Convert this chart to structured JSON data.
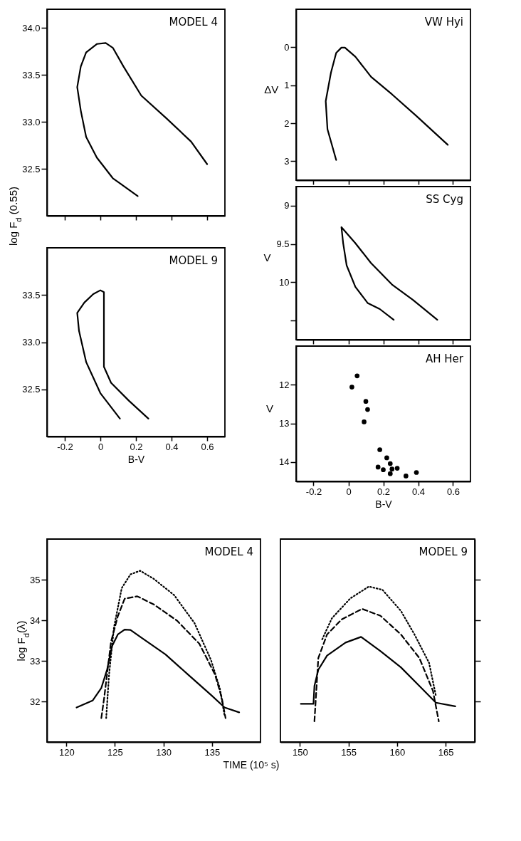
{
  "chart_data": [
    {
      "type": "line",
      "title": "MODEL 4",
      "ylabel": "log F$_{d}$ (0.55)",
      "xlim": [
        -0.3,
        0.7
      ],
      "ylim": [
        32.0,
        34.2
      ],
      "xticks": [
        -0.2,
        0,
        0.2,
        0.4,
        0.6
      ],
      "yticks": [
        32.5,
        {
          "value": 33,
          "label": "33.0"
        },
        33.5,
        {
          "value": 34,
          "label": "34.0"
        }
      ],
      "tick_labels": "y",
      "series": [
        {
          "color": "#000000",
          "x": [
            0.21,
            0.07,
            -0.02,
            -0.08,
            -0.11,
            -0.13,
            -0.11,
            -0.08,
            -0.02,
            0.03,
            0.07,
            0.13,
            0.23,
            0.37,
            0.51,
            0.6
          ],
          "values": [
            32.21,
            32.4,
            32.62,
            32.84,
            33.12,
            33.37,
            33.59,
            33.74,
            33.83,
            33.84,
            33.79,
            33.59,
            33.28,
            33.04,
            32.79,
            32.55
          ]
        }
      ]
    },
    {
      "type": "line",
      "title": "MODEL 9",
      "xlabel": "B-V",
      "xlim": [
        -0.3,
        0.7
      ],
      "ylim": [
        32.0,
        34.0
      ],
      "xticks": [
        -0.2,
        0,
        0.2,
        0.4,
        0.6
      ],
      "yticks": [
        32.5,
        {
          "value": 33,
          "label": "33.0"
        },
        33.5
      ],
      "series": [
        {
          "color": "#000000",
          "x": [
            0.11,
            0.0,
            -0.08,
            -0.12,
            -0.13,
            -0.09,
            -0.04,
            0.0,
            0.02,
            0.02,
            0.02,
            0.06,
            0.16,
            0.27
          ],
          "values": [
            32.19,
            32.46,
            32.79,
            33.12,
            33.31,
            33.42,
            33.51,
            33.55,
            33.53,
            33.12,
            32.74,
            32.57,
            32.38,
            32.19
          ]
        }
      ]
    },
    {
      "type": "line",
      "title": "VW Hyi",
      "ylabel": "ΔV",
      "xlim": [
        -0.3,
        0.7
      ],
      "ylim": [
        3.5,
        -1.0
      ],
      "xticks": [
        -0.2,
        0,
        0.2,
        0.4,
        0.6
      ],
      "yticks": [
        0,
        1,
        2,
        3
      ],
      "tick_labels": "y",
      "series": [
        {
          "color": "#000000",
          "x": [
            -0.07,
            -0.12,
            -0.13,
            -0.1,
            -0.07,
            -0.04,
            -0.02,
            0.04,
            0.13,
            0.25,
            0.39,
            0.57
          ],
          "values": [
            2.97,
            2.16,
            1.42,
            0.67,
            0.15,
            0.01,
            0.01,
            0.25,
            0.78,
            1.24,
            1.81,
            2.57
          ]
        }
      ]
    },
    {
      "type": "line",
      "title": "SS Cyg",
      "ylabel": "V",
      "xlim": [
        -0.3,
        0.7
      ],
      "ylim": [
        10.75,
        8.75
      ],
      "xticks": [
        -0.2,
        0,
        0.2,
        0.4,
        0.6
      ],
      "yticks": [
        9,
        9.5,
        10,
        {
          "value": 10.5,
          "label": null
        }
      ],
      "tick_labels": "y",
      "series": [
        {
          "color": "#000000",
          "x": [
            0.26,
            0.18,
            0.11,
            0.04,
            -0.01,
            -0.03,
            -0.04,
            0.04,
            0.13,
            0.25,
            0.37,
            0.51
          ],
          "values": [
            10.49,
            10.35,
            10.27,
            10.06,
            9.78,
            9.49,
            9.28,
            9.49,
            9.75,
            10.03,
            10.23,
            10.49
          ]
        }
      ]
    },
    {
      "type": "scatter",
      "title": "AH Her",
      "xlabel": "B-V",
      "ylabel": "V",
      "marker": "circle",
      "xlim": [
        -0.3,
        0.7
      ],
      "ylim": [
        14.5,
        11.0
      ],
      "xticks": [
        -0.2,
        0,
        0.2,
        0.4,
        0.6
      ],
      "yticks": [
        12,
        13,
        14
      ],
      "series": [
        {
          "color": "#000000",
          "x": [
            0.05,
            0.02,
            0.1,
            0.11,
            0.09,
            0.18,
            0.22,
            0.24,
            0.17,
            0.2,
            0.25,
            0.24,
            0.28,
            0.33,
            0.39
          ],
          "values": [
            11.77,
            12.06,
            12.43,
            12.64,
            12.96,
            13.68,
            13.89,
            14.04,
            14.13,
            14.2,
            14.18,
            14.3,
            14.16,
            14.36,
            14.27
          ]
        }
      ]
    },
    {
      "type": "line",
      "title": "MODEL 4",
      "xlabel": "TIME (10⁵ s)",
      "ylabel": "log F$_{d}$(λ)",
      "xlim": [
        118,
        140
      ],
      "ylim": [
        31,
        36
      ],
      "xticks": [
        120,
        125,
        130,
        135
      ],
      "yticks": [
        32,
        33,
        34,
        35
      ],
      "series": [
        {
          "color": "#000000",
          "line_style": "solid",
          "x": [
            121.05,
            122.7,
            123.6,
            124.2,
            124.7,
            125.3,
            126.0,
            126.6,
            127.8,
            130.2,
            132.5,
            134.9,
            136.3,
            137.8
          ],
          "values": [
            31.85,
            32.02,
            32.33,
            32.79,
            33.36,
            33.65,
            33.77,
            33.76,
            33.56,
            33.16,
            32.67,
            32.16,
            31.85,
            31.73
          ]
        },
        {
          "color": "#000000",
          "line_style": "dashed",
          "x": [
            123.6,
            123.9,
            124.6,
            125.3,
            126.0,
            127.3,
            129.0,
            131.4,
            133.7,
            135.3,
            136.0,
            136.4
          ],
          "values": [
            31.59,
            32.1,
            33.47,
            34.1,
            34.53,
            34.59,
            34.39,
            33.99,
            33.42,
            32.67,
            32.1,
            31.59
          ]
        },
        {
          "color": "#000000",
          "line_style": "dotted",
          "x": [
            124.1,
            124.4,
            124.9,
            125.7,
            126.6,
            127.6,
            129.0,
            131.1,
            133.2,
            134.9,
            135.8,
            136.3
          ],
          "values": [
            31.59,
            32.67,
            33.82,
            34.79,
            35.13,
            35.22,
            35.02,
            34.62,
            33.93,
            33.02,
            32.33,
            31.65
          ]
        }
      ]
    },
    {
      "type": "line",
      "title": "MODEL 9",
      "xlim": [
        148,
        168
      ],
      "ylim": [
        31,
        36
      ],
      "xticks": [
        150,
        155,
        160,
        165
      ],
      "yticks": [
        32,
        33,
        34,
        35
      ],
      "tick_labels": "x",
      "series": [
        {
          "color": "#000000",
          "line_style": "solid",
          "x": [
            150.1,
            151.4,
            151.5,
            151.9,
            152.8,
            154.7,
            156.3,
            158.3,
            160.4,
            162.3,
            164.0,
            166.0
          ],
          "values": [
            31.94,
            31.94,
            32.38,
            32.78,
            33.13,
            33.45,
            33.59,
            33.24,
            32.84,
            32.38,
            31.97,
            31.88
          ]
        },
        {
          "color": "#000000",
          "line_style": "dashed",
          "x": [
            151.5,
            151.9,
            152.8,
            154.3,
            156.4,
            158.3,
            160.4,
            162.3,
            163.7,
            164.3
          ],
          "values": [
            31.51,
            33.07,
            33.65,
            34.02,
            34.28,
            34.11,
            33.65,
            33.07,
            32.26,
            31.51
          ]
        },
        {
          "color": "#000000",
          "line_style": "dotted",
          "x": [
            152.3,
            153.3,
            155.2,
            157.1,
            158.5,
            160.4,
            161.8,
            163.3,
            164.0
          ],
          "values": [
            33.53,
            34.05,
            34.54,
            34.83,
            34.75,
            34.23,
            33.65,
            32.95,
            32.14
          ]
        }
      ]
    }
  ]
}
